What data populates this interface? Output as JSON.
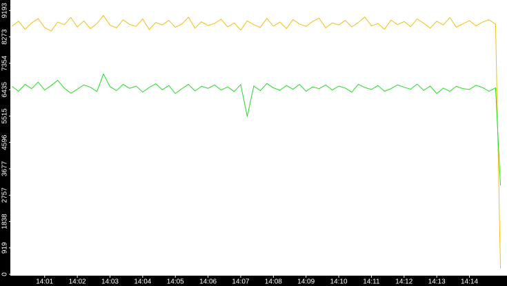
{
  "chart_data": {
    "type": "line",
    "x": [
      0,
      0.2,
      0.4,
      0.6,
      0.8,
      1,
      1.2,
      1.4,
      1.6,
      1.8,
      2,
      2.2,
      2.4,
      2.6,
      2.8,
      3,
      3.2,
      3.4,
      3.6,
      3.8,
      4,
      4.2,
      4.4,
      4.6,
      4.8,
      5,
      5.2,
      5.4,
      5.6,
      5.8,
      6,
      6.2,
      6.4,
      6.6,
      6.8,
      7,
      7.2,
      7.4,
      7.6,
      7.8,
      8,
      8.2,
      8.4,
      8.6,
      8.8,
      9,
      9.2,
      9.4,
      9.6,
      9.8,
      10,
      10.2,
      10.4,
      10.6,
      10.8,
      11,
      11.2,
      11.4,
      11.6,
      11.8,
      12,
      12.2,
      12.4,
      12.6,
      12.8,
      13,
      13.2,
      13.4,
      13.6,
      13.8,
      14,
      14.2,
      14.4,
      14.6,
      14.8,
      14.95
    ],
    "series": [
      {
        "color": "#f0c010",
        "values": [
          8650,
          8820,
          8540,
          8760,
          8910,
          8600,
          8480,
          8790,
          8700,
          8950,
          8620,
          8830,
          8560,
          8740,
          9020,
          8680,
          8590,
          8870,
          8710,
          8640,
          8900,
          8530,
          8780,
          8690,
          8850,
          8610,
          8720,
          8960,
          8580,
          8800,
          8670,
          8740,
          8890,
          8620,
          8760,
          8510,
          8830,
          8700,
          8600,
          8920,
          8650,
          8790,
          8560,
          8880,
          8720,
          8640,
          8810,
          8930,
          8590,
          8760,
          8690,
          8850,
          8620,
          8780,
          8970,
          8660,
          8740,
          8540,
          8860,
          8700,
          8810,
          8630,
          8900,
          8750,
          8580,
          8820,
          8690,
          8950,
          8610,
          8730,
          8840,
          8660,
          8790,
          8870,
          8720,
          200
        ]
      },
      {
        "color": "#22dd22",
        "values": [
          6550,
          6380,
          6620,
          6470,
          6700,
          6420,
          6580,
          6760,
          6490,
          6310,
          6450,
          6600,
          6520,
          6370,
          6980,
          6540,
          6400,
          6620,
          6480,
          6560,
          6350,
          6510,
          6640,
          6430,
          6580,
          6300,
          6470,
          6620,
          6390,
          6550,
          6480,
          6600,
          6420,
          6530,
          6370,
          6610,
          5500,
          6560,
          6400,
          6650,
          6500,
          6410,
          6580,
          6450,
          6620,
          6380,
          6530,
          6470,
          6600,
          6420,
          6560,
          6490,
          6350,
          6620,
          6510,
          6440,
          6580,
          6380,
          6470,
          6600,
          6520,
          6450,
          6630,
          6410,
          6560,
          6300,
          6490,
          6380,
          6550,
          6470,
          6440,
          6590,
          6510,
          6380,
          6500,
          3100
        ]
      }
    ],
    "xlim": [
      -0.05,
      15.15
    ],
    "xticks": [
      {
        "value": 1,
        "label": "14:01"
      },
      {
        "value": 2,
        "label": "14:02"
      },
      {
        "value": 3,
        "label": "14:03"
      },
      {
        "value": 4,
        "label": "14:04"
      },
      {
        "value": 5,
        "label": "14:05"
      },
      {
        "value": 6,
        "label": "14:06"
      },
      {
        "value": 7,
        "label": "14:07"
      },
      {
        "value": 8,
        "label": "14:08"
      },
      {
        "value": 9,
        "label": "14:09"
      },
      {
        "value": 10,
        "label": "14:10"
      },
      {
        "value": 11,
        "label": "14:11"
      },
      {
        "value": 12,
        "label": "14:12"
      },
      {
        "value": 13,
        "label": "14:13"
      },
      {
        "value": 14,
        "label": "14:14"
      }
    ],
    "ylim": [
      0,
      9560
    ],
    "yticks": [
      0,
      919,
      1838,
      2757,
      3677,
      4596,
      5515,
      6435,
      7354,
      8273,
      9193
    ]
  }
}
